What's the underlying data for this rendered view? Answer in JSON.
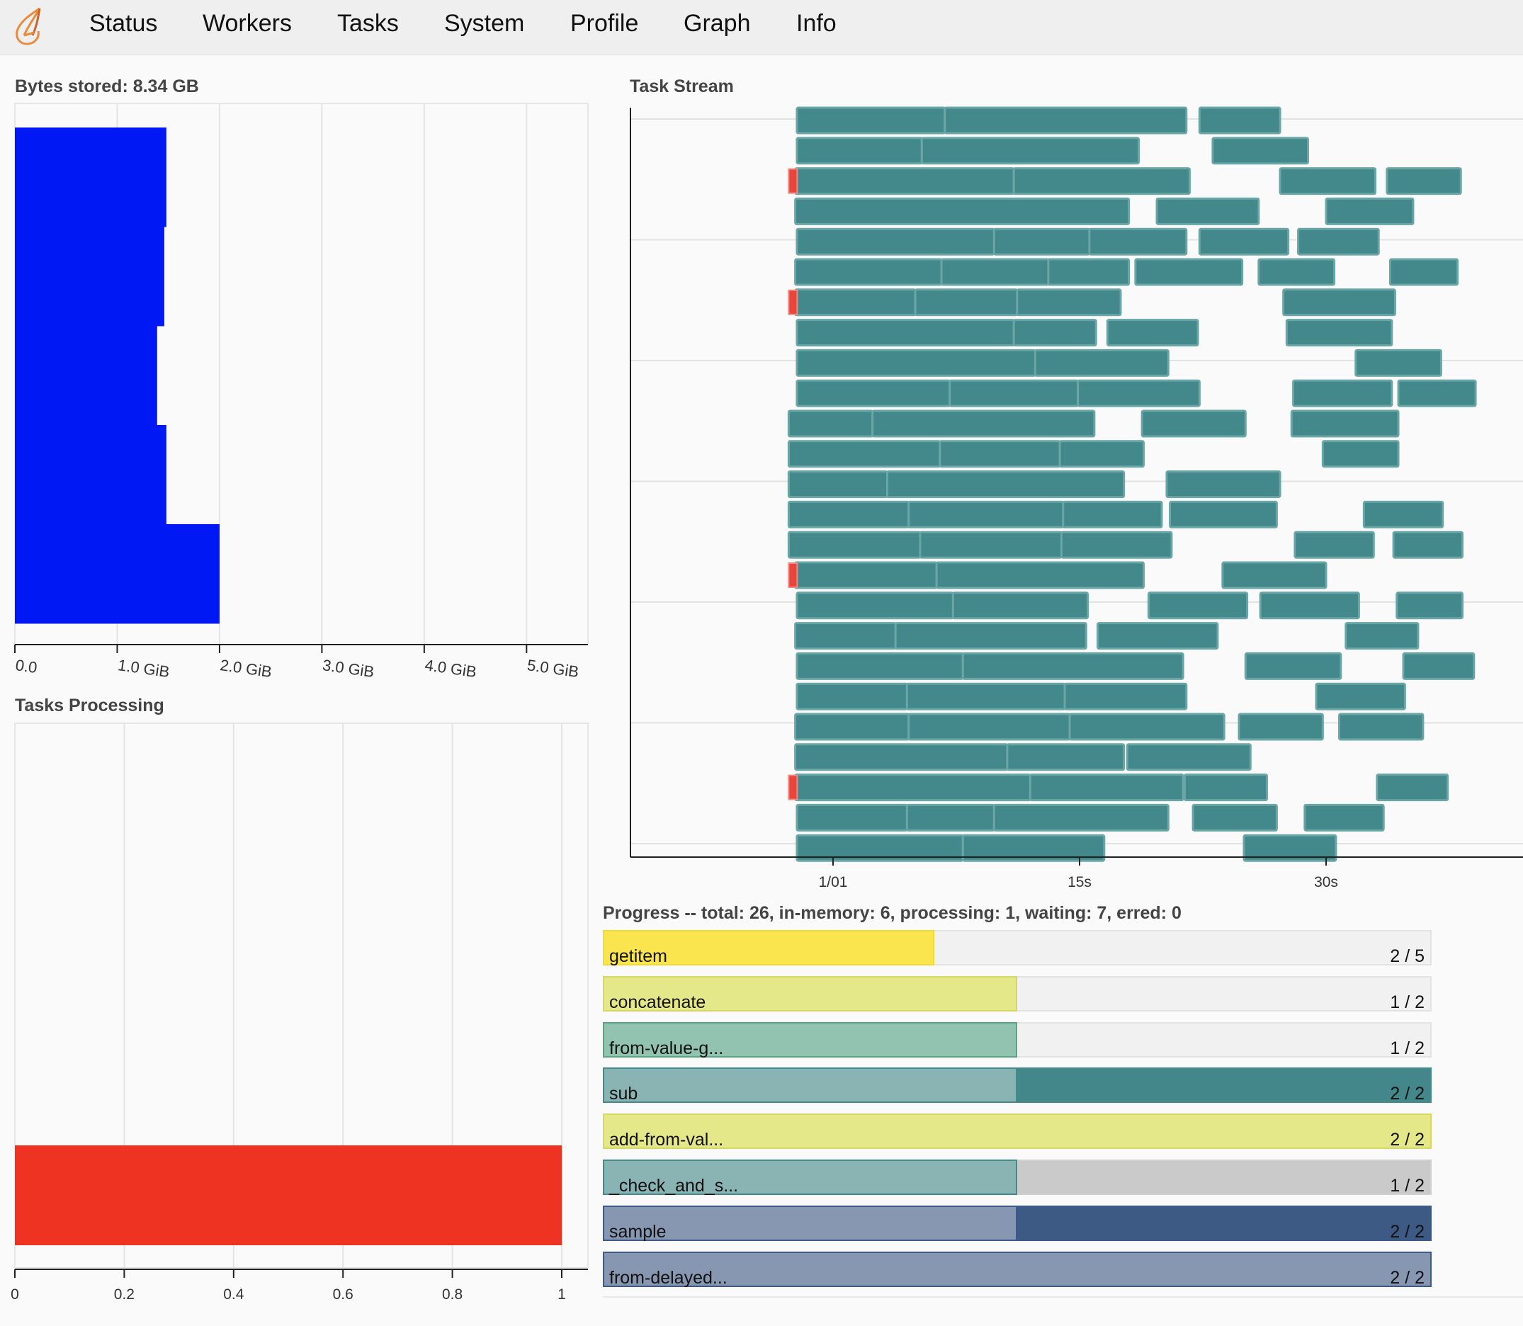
{
  "navbar": {
    "logo_icon": "dask-flame-logo-icon",
    "items": [
      "Status",
      "Workers",
      "Tasks",
      "System",
      "Profile",
      "Graph",
      "Info"
    ]
  },
  "bytes_stored": {
    "title": "Bytes stored: 8.34 GB",
    "chart_data": {
      "type": "bar",
      "orientation": "horizontal",
      "title": "Bytes stored: 8.34 GB",
      "xlabel": "",
      "ylabel": "",
      "xlim": [
        0,
        5.6
      ],
      "tick_labels": [
        "0.0",
        "1.0 GiB",
        "2.0 GiB",
        "3.0 GiB",
        "4.0 GiB",
        "5.0 GiB"
      ],
      "values": [
        1.48,
        1.46,
        1.39,
        1.48,
        2.0
      ],
      "unit": "GiB",
      "color": "#0019f4",
      "grid": true
    }
  },
  "tasks_processing": {
    "title": "Tasks Processing",
    "chart_data": {
      "type": "bar",
      "orientation": "horizontal",
      "title": "Tasks Processing",
      "xlim": [
        0,
        1.05
      ],
      "ticks": [
        0,
        0.2,
        0.4,
        0.6,
        0.8,
        1
      ],
      "tick_labels": [
        "0",
        "0.2",
        "0.4",
        "0.6",
        "0.8",
        "1"
      ],
      "values": [
        1
      ],
      "color": "#ee3323",
      "grid": true
    }
  },
  "task_stream": {
    "title": "Task Stream",
    "chart_data": {
      "type": "timeline",
      "title": "Task Stream",
      "xlim": [
        -7.5,
        41
      ],
      "tick_labels": [
        "1/01",
        "15s",
        "30s"
      ],
      "tick_values": [
        0,
        15,
        30
      ],
      "colors": {
        "task": "#43888b",
        "task_edge": "#6aa6a6",
        "error": "#e8453c"
      },
      "rows": [
        [
          [
            -2.2,
            6.8
          ],
          [
            6.8,
            21.5
          ],
          [
            22.3,
            27.2
          ]
        ],
        [
          [
            -2.2,
            5.4
          ],
          [
            5.4,
            18.6
          ],
          [
            23.1,
            28.9
          ]
        ],
        [
          [
            -2.3,
            11.0
          ],
          [
            11.0,
            21.7
          ],
          [
            27.2,
            33.0
          ],
          [
            33.7,
            38.2
          ]
        ],
        [
          [
            -2.3,
            18.0
          ],
          [
            19.7,
            25.9
          ],
          [
            30.0,
            35.3
          ]
        ],
        [
          [
            -2.2,
            9.8
          ],
          [
            9.8,
            15.6
          ],
          [
            15.6,
            21.5
          ],
          [
            22.3,
            27.7
          ],
          [
            28.3,
            33.2
          ]
        ],
        [
          [
            -2.3,
            6.6
          ],
          [
            6.6,
            13.1
          ],
          [
            13.1,
            18.0
          ],
          [
            18.4,
            24.9
          ],
          [
            25.9,
            30.5
          ],
          [
            33.9,
            38.0
          ]
        ],
        [
          [
            -2.3,
            5.0
          ],
          [
            5.0,
            11.2
          ],
          [
            11.2,
            17.5
          ],
          [
            27.4,
            34.2
          ]
        ],
        [
          [
            -2.2,
            11.0
          ],
          [
            11.0,
            16.0
          ],
          [
            16.7,
            22.2
          ],
          [
            27.6,
            34.0
          ]
        ],
        [
          [
            -2.2,
            12.3
          ],
          [
            12.3,
            20.4
          ],
          [
            31.8,
            37.0
          ]
        ],
        [
          [
            -2.2,
            7.1
          ],
          [
            7.1,
            14.9
          ],
          [
            14.9,
            22.3
          ],
          [
            28.0,
            34.0
          ],
          [
            34.4,
            39.1
          ]
        ],
        [
          [
            -2.7,
            2.4
          ],
          [
            2.4,
            15.9
          ],
          [
            18.8,
            25.1
          ],
          [
            27.9,
            34.4
          ]
        ],
        [
          [
            -2.7,
            6.5
          ],
          [
            6.5,
            13.8
          ],
          [
            13.8,
            18.9
          ],
          [
            29.8,
            34.4
          ]
        ],
        [
          [
            -2.7,
            3.3
          ],
          [
            3.3,
            17.7
          ],
          [
            20.3,
            27.2
          ]
        ],
        [
          [
            -2.7,
            4.6
          ],
          [
            4.6,
            14.0
          ],
          [
            14.0,
            20.0
          ],
          [
            20.5,
            27.0
          ],
          [
            32.3,
            37.1
          ]
        ],
        [
          [
            -2.7,
            5.3
          ],
          [
            5.3,
            13.9
          ],
          [
            13.9,
            20.6
          ],
          [
            28.1,
            32.9
          ],
          [
            34.1,
            38.3
          ]
        ],
        [
          [
            -2.3,
            6.3
          ],
          [
            6.3,
            18.9
          ],
          [
            23.7,
            30.0
          ]
        ],
        [
          [
            -2.2,
            7.3
          ],
          [
            7.3,
            15.5
          ],
          [
            19.2,
            25.2
          ],
          [
            26.0,
            32.0
          ],
          [
            34.3,
            38.3
          ]
        ],
        [
          [
            -2.3,
            3.8
          ],
          [
            3.8,
            15.4
          ],
          [
            16.1,
            23.4
          ],
          [
            31.2,
            35.6
          ]
        ],
        [
          [
            -2.2,
            7.9
          ],
          [
            7.9,
            21.3
          ],
          [
            25.1,
            30.9
          ],
          [
            34.7,
            39.0
          ]
        ],
        [
          [
            -2.2,
            4.5
          ],
          [
            4.5,
            14.1
          ],
          [
            14.1,
            21.5
          ],
          [
            29.4,
            34.8
          ]
        ],
        [
          [
            -2.3,
            4.6
          ],
          [
            4.6,
            14.4
          ],
          [
            14.4,
            23.8
          ],
          [
            24.7,
            29.8
          ],
          [
            30.8,
            35.9
          ]
        ],
        [
          [
            -2.3,
            10.6
          ],
          [
            10.6,
            17.7
          ],
          [
            17.9,
            25.4
          ]
        ],
        [
          [
            -2.3,
            12.0
          ],
          [
            12.0,
            21.3
          ],
          [
            21.4,
            26.4
          ],
          [
            33.1,
            37.4
          ]
        ],
        [
          [
            -2.2,
            4.5
          ],
          [
            4.5,
            9.8
          ],
          [
            9.8,
            20.4
          ],
          [
            21.9,
            27.0
          ],
          [
            28.7,
            33.5
          ]
        ],
        [
          [
            -2.2,
            7.9
          ],
          [
            7.9,
            16.5
          ],
          [
            25.0,
            30.6
          ]
        ]
      ],
      "error_rows": [
        2,
        6,
        15,
        22
      ]
    }
  },
  "progress": {
    "title": "Progress -- total: 26, in-memory: 6, processing: 1, waiting: 7, erred: 0",
    "items": [
      {
        "name": "getitem",
        "count": "2 / 5",
        "done_fraction": 0.4,
        "released_fraction": 0.0,
        "color": "#fbe54e",
        "edge": "#f1d938",
        "released_color": "#fbe54e"
      },
      {
        "name": "concatenate",
        "count": "1 / 2",
        "done_fraction": 0.5,
        "released_fraction": 0.0,
        "color": "#e4e888",
        "edge": "#d4d860",
        "released_color": "#e4e888"
      },
      {
        "name": "from-value-g...",
        "count": "1 / 2",
        "done_fraction": 0.5,
        "released_fraction": 0.0,
        "color": "#91c3b0",
        "edge": "#56a583",
        "released_color": "#91c3b0"
      },
      {
        "name": "sub",
        "count": "2 / 2",
        "done_fraction": 0.5,
        "released_fraction": 0.5,
        "color": "#8ab3b4",
        "edge": "#438a8b",
        "released_color": "#43878a"
      },
      {
        "name": "add-from-val...",
        "count": "2 / 2",
        "done_fraction": 1.0,
        "released_fraction": 0.0,
        "color": "#e4e888",
        "edge": "#d4d860",
        "released_color": "#e4e888"
      },
      {
        "name": "_check_and_s...",
        "count": "1 / 2",
        "done_fraction": 0.5,
        "released_fraction": 0.0,
        "color": "#8ab3b4",
        "edge": "#438a8b",
        "released_color": "#8ab3b4",
        "waiting_color": "#cacaca"
      },
      {
        "name": "sample",
        "count": "2 / 2",
        "done_fraction": 0.5,
        "released_fraction": 0.5,
        "color": "#8797b1",
        "edge": "#3b5a87",
        "released_color": "#3d5a85"
      },
      {
        "name": "from-delayed...",
        "count": "2 / 2",
        "done_fraction": 1.0,
        "released_fraction": 0.0,
        "color": "#8797b1",
        "edge": "#3b5a87",
        "released_color": "#8797b1"
      }
    ]
  }
}
